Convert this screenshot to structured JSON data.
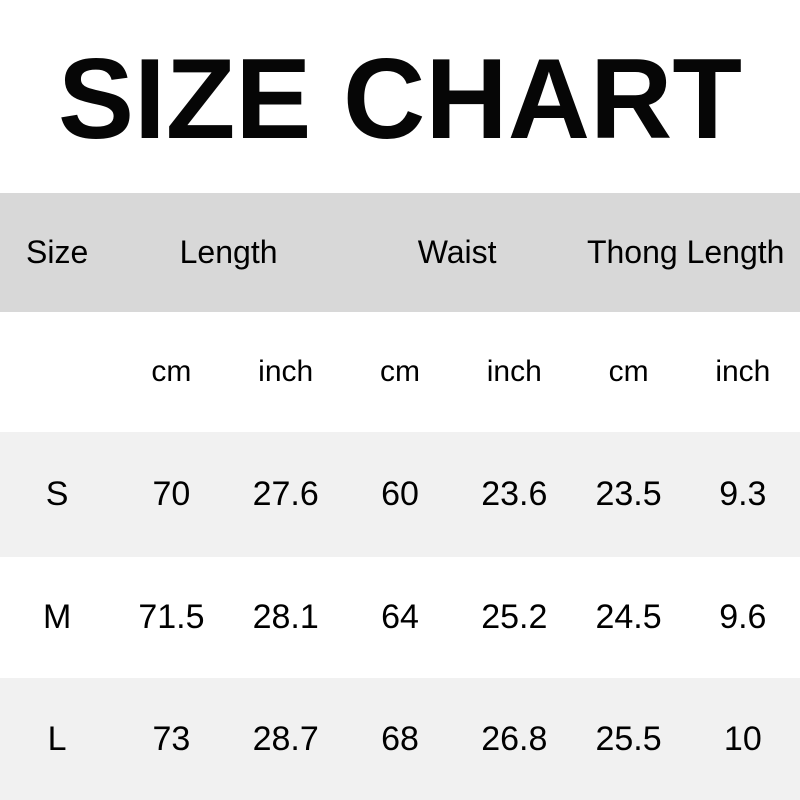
{
  "title": "SIZE CHART",
  "chart_data": {
    "type": "table",
    "title": "SIZE CHART",
    "columns": [
      "Size",
      "Length",
      "Waist",
      "Thong Length"
    ],
    "unit_subcolumns": [
      "cm",
      "inch",
      "cm",
      "inch",
      "cm",
      "inch"
    ],
    "rows": [
      {
        "size": "S",
        "values": [
          "70",
          "27.6",
          "60",
          "23.6",
          "23.5",
          "9.3"
        ]
      },
      {
        "size": "M",
        "values": [
          "71.5",
          "28.1",
          "64",
          "25.2",
          "24.5",
          "9.6"
        ]
      },
      {
        "size": "L",
        "values": [
          "73",
          "28.7",
          "68",
          "26.8",
          "25.5",
          "10"
        ]
      }
    ],
    "layout": {
      "header_background": "#d8d8d8",
      "stripe_background": "#f1f1f1",
      "plain_background": "#ffffff",
      "text_color": "#000000",
      "grid_lines": "none"
    }
  }
}
